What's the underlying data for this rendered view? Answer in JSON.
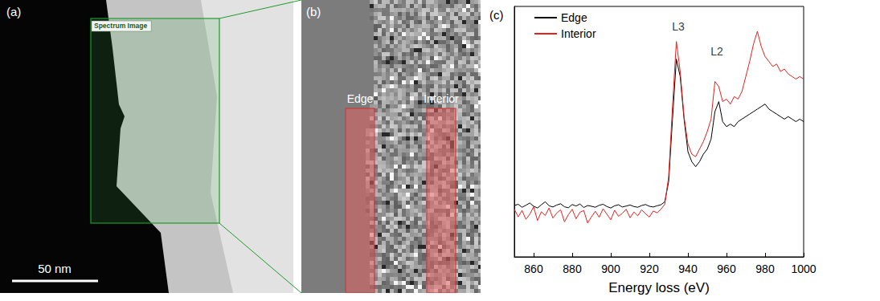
{
  "panel_a": {
    "label": "(a)",
    "box_label": "Spectrum Image",
    "scale_bar": "50 nm"
  },
  "panel_b": {
    "label": "(b)",
    "regions": [
      "Edge",
      "Interior"
    ]
  },
  "chart_data": {
    "type": "line",
    "title": "(c)",
    "xlabel": "Energy loss (eV)",
    "x": [
      850,
      852,
      854,
      856,
      858,
      860,
      862,
      864,
      866,
      868,
      870,
      872,
      874,
      876,
      878,
      880,
      882,
      884,
      886,
      888,
      890,
      892,
      894,
      896,
      898,
      900,
      902,
      904,
      906,
      908,
      910,
      912,
      914,
      916,
      918,
      920,
      922,
      924,
      926,
      928,
      930,
      932,
      934,
      936,
      938,
      940,
      942,
      944,
      946,
      948,
      950,
      952,
      954,
      956,
      958,
      960,
      962,
      964,
      966,
      968,
      970,
      972,
      974,
      976,
      978,
      980,
      982,
      984,
      986,
      988,
      990,
      992,
      994,
      996,
      998,
      1000
    ],
    "series": [
      {
        "name": "Edge",
        "color": "#000000",
        "values": [
          20.5,
          21,
          19.8,
          20.6,
          21.5,
          20.2,
          19.5,
          20.8,
          22,
          20.4,
          19.9,
          20.7,
          21.2,
          20,
          19.6,
          20.9,
          20.3,
          21.1,
          19.7,
          20.5,
          20.2,
          19.8,
          20.6,
          21,
          20.1,
          19.5,
          20.4,
          20.8,
          19.9,
          20.3,
          20.7,
          20.1,
          19.8,
          20.5,
          20.9,
          20.2,
          19.9,
          20.4,
          20.8,
          22,
          30,
          55,
          79,
          72,
          55,
          42,
          38,
          36,
          38,
          41,
          43,
          47,
          58,
          62,
          54,
          52,
          53,
          52,
          54,
          55,
          56,
          57,
          58,
          59,
          60,
          61,
          59,
          58,
          57,
          56,
          55,
          56,
          55,
          54,
          55,
          54
        ]
      },
      {
        "name": "Interior",
        "color": "#e8201c",
        "values": [
          19,
          16,
          18.5,
          15,
          17,
          20,
          14.5,
          18,
          16.5,
          19.5,
          15.5,
          17.5,
          18.8,
          14,
          16.8,
          19,
          15.2,
          17.8,
          18.5,
          13.5,
          16,
          18.2,
          15.8,
          19.2,
          17,
          14.8,
          18.6,
          16.2,
          17.4,
          19,
          15.6,
          17.9,
          16.4,
          18.8,
          17.2,
          15.9,
          18.3,
          17.6,
          19,
          21,
          32,
          60,
          86,
          74,
          56,
          45,
          41,
          40,
          43,
          46,
          50,
          55,
          70,
          68,
          62,
          63,
          61,
          64,
          63,
          66,
          72,
          78,
          85,
          90,
          84,
          80,
          78,
          76,
          77,
          74,
          75,
          73,
          72,
          71,
          72,
          71
        ]
      }
    ],
    "xlim": [
      850,
      1000
    ],
    "xticks": [
      860,
      880,
      900,
      920,
      940,
      960,
      980,
      1000
    ],
    "ylim": [
      0,
      100
    ],
    "tick_labels": "x",
    "grid": false,
    "legend": "upper left",
    "annotations": [
      {
        "text": "L3",
        "x": 935,
        "y": 92
      },
      {
        "text": "L2",
        "x": 955,
        "y": 82
      }
    ]
  }
}
